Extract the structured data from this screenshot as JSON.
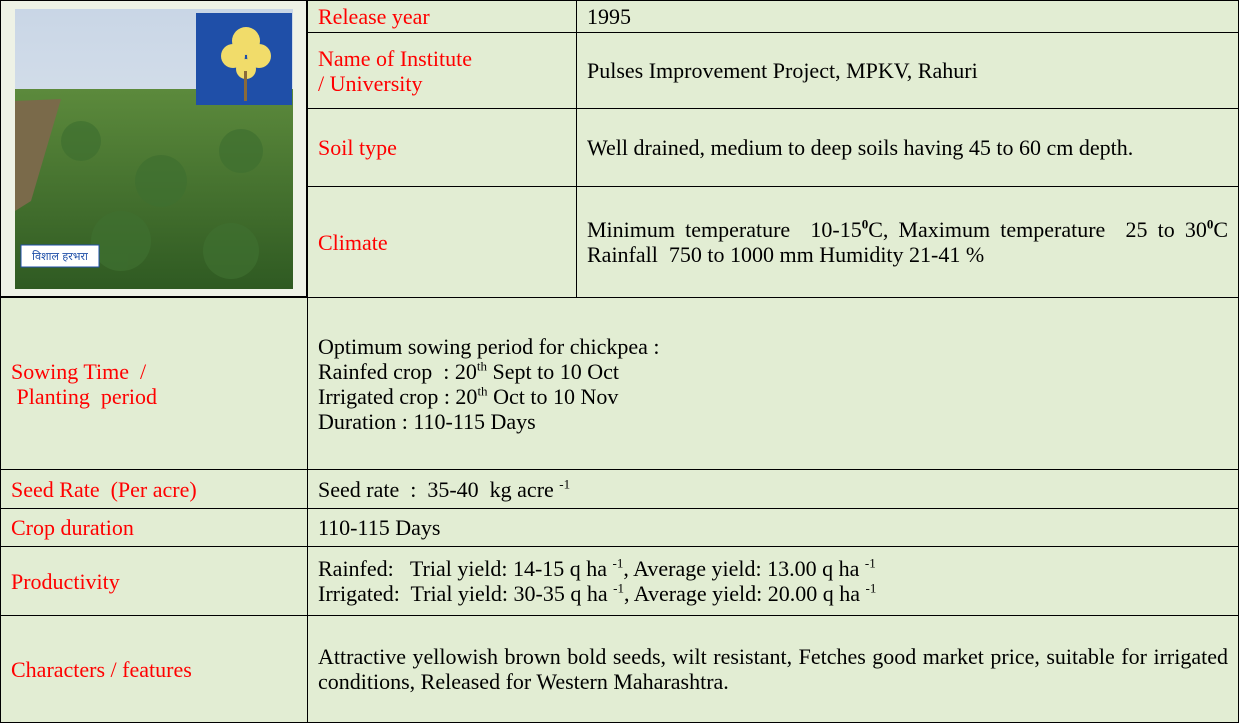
{
  "image_caption": "विशाल हरभरा",
  "rows": [
    {
      "label": [
        "Release year"
      ],
      "value": [
        [
          "1995"
        ]
      ]
    },
    {
      "label": [
        "Name of Institute",
        "/ University"
      ],
      "value": [
        [
          "Pulses Improvement Project, MPKV, Rahuri"
        ]
      ]
    },
    {
      "label": [
        "Soil type"
      ],
      "value": [
        [
          "Well drained, medium to deep soils having 45 to 60 cm depth."
        ]
      ]
    },
    {
      "label": [
        "Climate"
      ],
      "value": [
        [
          "Minimum temperature  10-15",
          {
            "sup": "0"
          },
          "C, Maximum temperature  25 to 30",
          {
            "sup": "0"
          },
          "C Rainfall  750 to 1000 mm Humidity 21-41 %"
        ]
      ]
    },
    {
      "label": [
        "Sowing Time  /",
        " Planting  period"
      ],
      "value": [
        [
          "Optimum sowing period for chickpea :"
        ],
        [
          "Rainfed crop  : 20",
          {
            "sup": "th"
          },
          " Sept to 10 Oct"
        ],
        [
          "Irrigated crop : 20",
          {
            "sup": "th"
          },
          " Oct to 10 Nov"
        ],
        [
          "Duration : 110-115 Days"
        ]
      ]
    },
    {
      "label": [
        "Seed Rate  (Per acre)"
      ],
      "value": [
        [
          "Seed rate  :  35-40  kg acre ",
          {
            "sup": "-1"
          }
        ]
      ]
    },
    {
      "label": [
        "Crop duration"
      ],
      "value": [
        [
          "110-115 Days"
        ]
      ]
    },
    {
      "label": [
        "Productivity"
      ],
      "value": [
        [
          "Rainfed:   Trial yield: 14-15 q ha ",
          {
            "sup": "-1"
          },
          ", Average yield: 13.00 q ha ",
          {
            "sup": "-1"
          }
        ],
        [
          "Irrigated:  Trial yield: 30-35 q ha ",
          {
            "sup": "-1"
          },
          ", Average yield: 20.00 q ha ",
          {
            "sup": "-1"
          }
        ]
      ]
    },
    {
      "label": [
        "Characters / features"
      ],
      "value": [
        [
          "Attractive yellowish brown bold seeds, wilt resistant, Fetches good market price, suitable for irrigated conditions, Released for Western Maharashtra."
        ]
      ]
    }
  ]
}
